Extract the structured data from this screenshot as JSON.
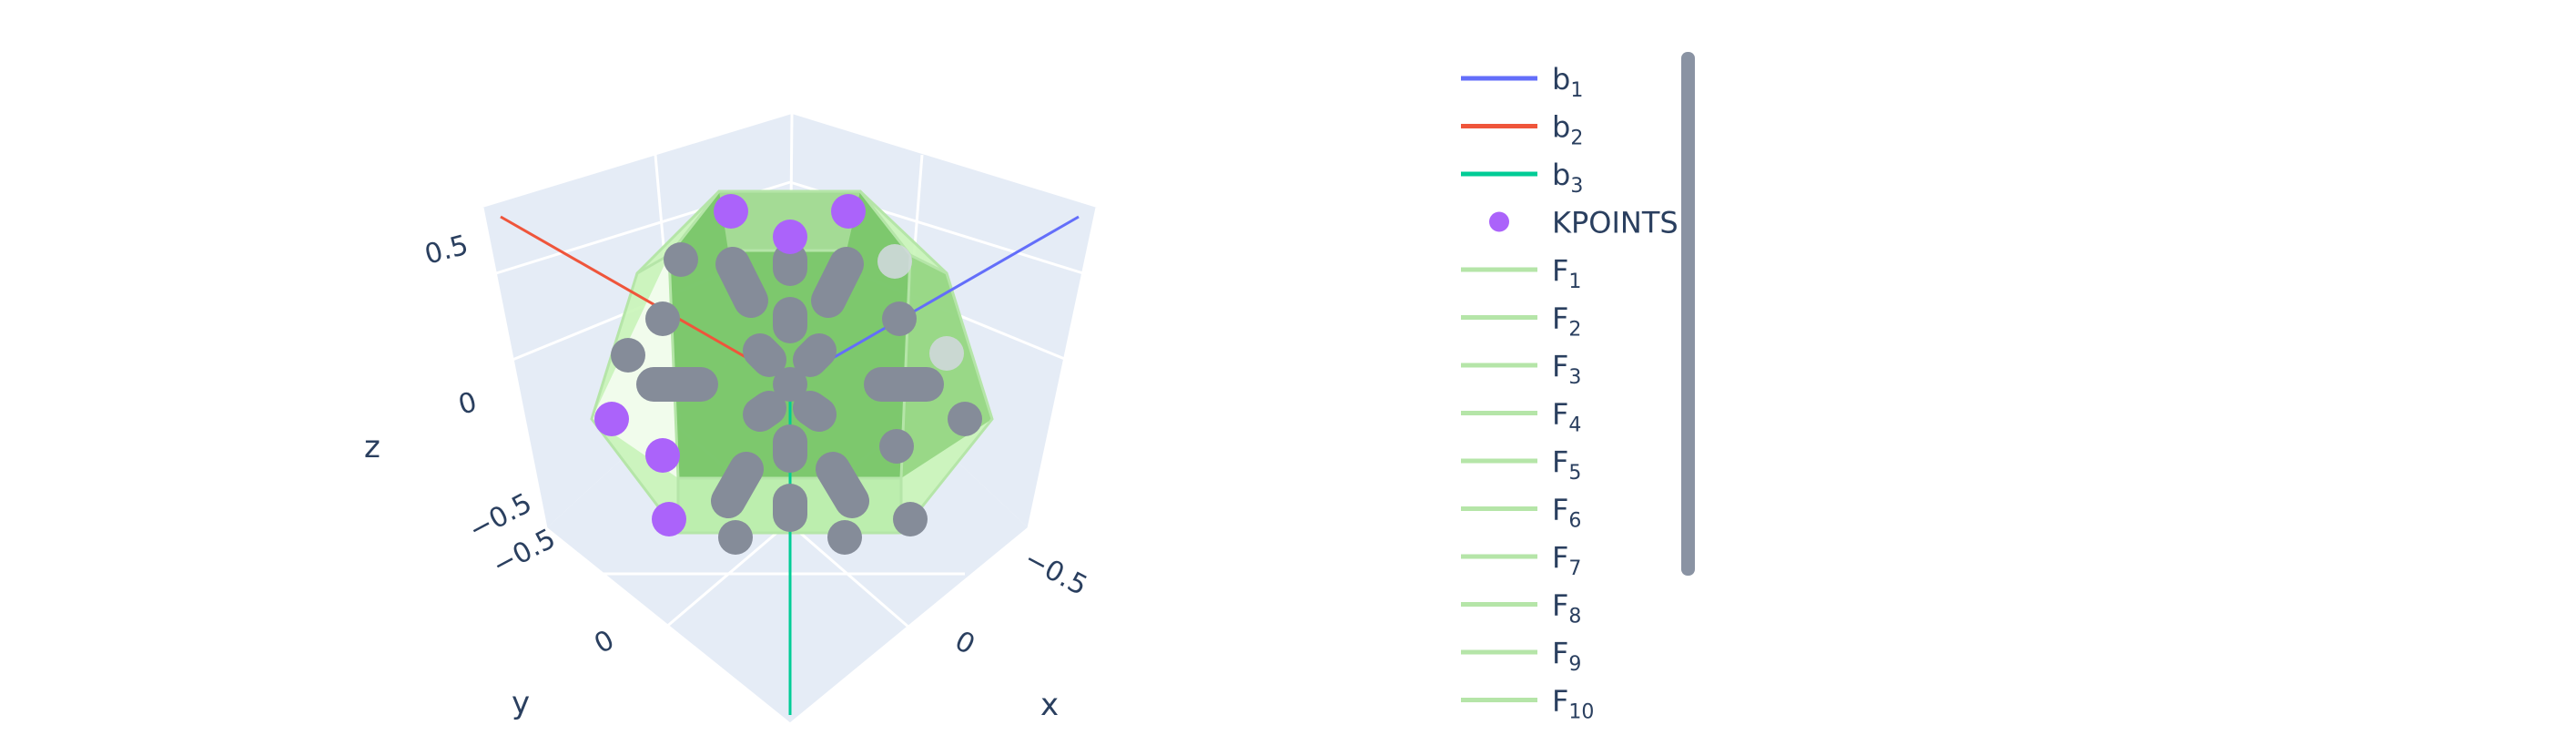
{
  "chart_data": {
    "type": "scatter3d",
    "scene": {
      "axes": [
        {
          "name": "x",
          "title": "x",
          "ticks": [
            "−0.5",
            "0"
          ],
          "range": [
            -0.75,
            0.75
          ]
        },
        {
          "name": "y",
          "title": "y",
          "ticks": [
            "−0.5",
            "0"
          ],
          "range": [
            -0.75,
            0.75
          ]
        },
        {
          "name": "z",
          "title": "z",
          "ticks": [
            "−0.5",
            "0",
            "0.5"
          ],
          "range": [
            -0.75,
            0.75
          ]
        }
      ],
      "background": "#e5ecf6",
      "grid": true
    },
    "series": [
      {
        "name": "b",
        "subscript": "1",
        "kind": "line",
        "color": "#636efa"
      },
      {
        "name": "b",
        "subscript": "2",
        "kind": "line",
        "color": "#ef553b"
      },
      {
        "name": "b",
        "subscript": "3",
        "kind": "line",
        "color": "#00cc96"
      },
      {
        "name": "KPOINTS",
        "subscript": "",
        "kind": "marker",
        "color": "#ab63fa"
      },
      {
        "name": "F",
        "subscript": "1",
        "kind": "line",
        "color": "#b5e5a8"
      },
      {
        "name": "F",
        "subscript": "2",
        "kind": "line",
        "color": "#b5e5a8"
      },
      {
        "name": "F",
        "subscript": "3",
        "kind": "line",
        "color": "#b5e5a8"
      },
      {
        "name": "F",
        "subscript": "4",
        "kind": "line",
        "color": "#b5e5a8"
      },
      {
        "name": "F",
        "subscript": "5",
        "kind": "line",
        "color": "#b5e5a8"
      },
      {
        "name": "F",
        "subscript": "6",
        "kind": "line",
        "color": "#b5e5a8"
      },
      {
        "name": "F",
        "subscript": "7",
        "kind": "line",
        "color": "#b5e5a8"
      },
      {
        "name": "F",
        "subscript": "8",
        "kind": "line",
        "color": "#b5e5a8"
      },
      {
        "name": "F",
        "subscript": "9",
        "kind": "line",
        "color": "#b5e5a8"
      },
      {
        "name": "F",
        "subscript": "10",
        "kind": "line",
        "color": "#b5e5a8"
      }
    ],
    "legend": {
      "placement": "right",
      "scrollbar": true
    },
    "colors": {
      "polyhedron_fill": "#6fbf5f",
      "polyhedron_light": "#c9f5b8",
      "kpoint_gray": "#858c99"
    }
  }
}
